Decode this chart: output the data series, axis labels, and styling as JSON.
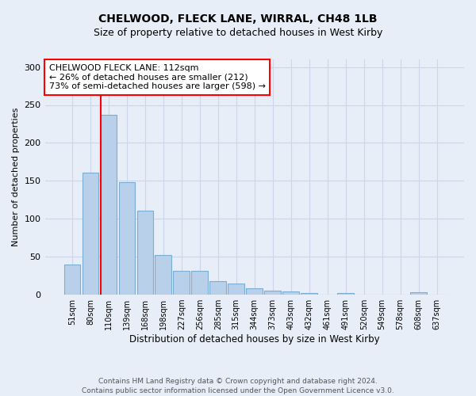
{
  "title1": "CHELWOOD, FLECK LANE, WIRRAL, CH48 1LB",
  "title2": "Size of property relative to detached houses in West Kirby",
  "xlabel": "Distribution of detached houses by size in West Kirby",
  "ylabel": "Number of detached properties",
  "categories": [
    "51sqm",
    "80sqm",
    "110sqm",
    "139sqm",
    "168sqm",
    "198sqm",
    "227sqm",
    "256sqm",
    "285sqm",
    "315sqm",
    "344sqm",
    "373sqm",
    "403sqm",
    "432sqm",
    "461sqm",
    "491sqm",
    "520sqm",
    "549sqm",
    "578sqm",
    "608sqm",
    "637sqm"
  ],
  "values": [
    40,
    161,
    237,
    148,
    111,
    52,
    31,
    31,
    18,
    15,
    8,
    5,
    4,
    2,
    0,
    2,
    0,
    0,
    0,
    3,
    0
  ],
  "bar_color": "#b8d0ea",
  "bar_edge_color": "#7aadd4",
  "property_line_index": 2,
  "annotation_text_line1": "CHELWOOD FLECK LANE: 112sqm",
  "annotation_text_line2": "← 26% of detached houses are smaller (212)",
  "annotation_text_line3": "73% of semi-detached houses are larger (598) →",
  "annotation_box_color": "white",
  "annotation_box_edge_color": "red",
  "vline_color": "red",
  "ylim": [
    0,
    310
  ],
  "yticks": [
    0,
    50,
    100,
    150,
    200,
    250,
    300
  ],
  "grid_color": "#cdd6e8",
  "background_color": "#e8eef8",
  "title1_fontsize": 10,
  "title2_fontsize": 9,
  "footer1": "Contains HM Land Registry data © Crown copyright and database right 2024.",
  "footer2": "Contains public sector information licensed under the Open Government Licence v3.0."
}
